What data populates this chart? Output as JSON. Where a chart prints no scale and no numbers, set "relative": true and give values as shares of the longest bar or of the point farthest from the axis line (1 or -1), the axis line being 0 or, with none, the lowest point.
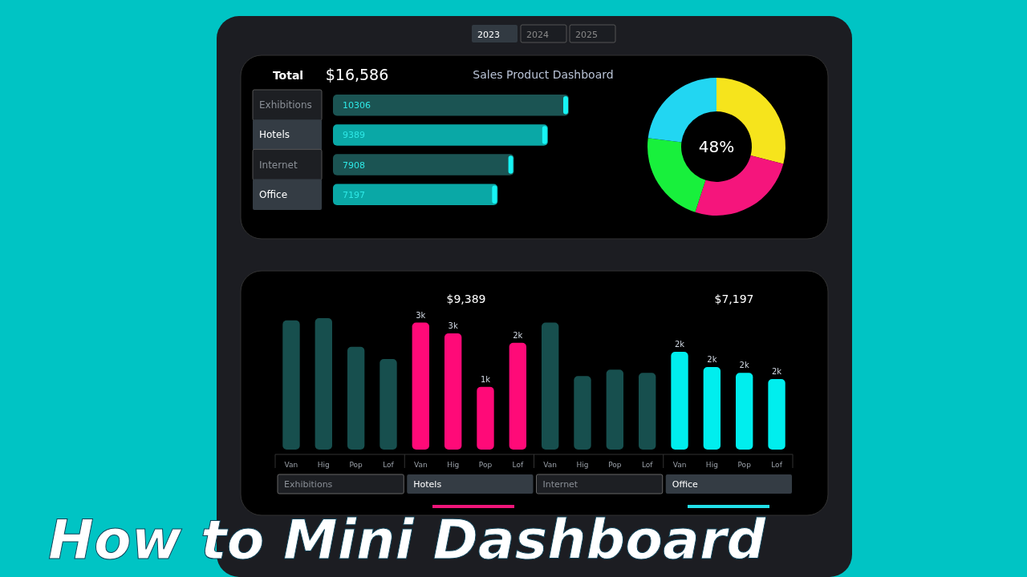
{
  "chart_data": [
    {
      "type": "bar",
      "orientation": "horizontal",
      "title": "Sales Product Dashboard",
      "categories": [
        "Exhibitions",
        "Hotels",
        "Internet",
        "Office"
      ],
      "values": [
        10306,
        9389,
        7908,
        7197
      ],
      "colors": [
        "#1b5453",
        "#0aa8a6",
        "#1b5453",
        "#0aa8a6"
      ],
      "data_labels": true,
      "annotations": [
        "2023",
        "2024",
        "2025",
        "Total",
        "$16,586",
        "How to Mini Dashboard"
      ]
    },
    {
      "type": "donut",
      "relative": true,
      "categories": [
        null,
        null,
        null,
        null
      ],
      "values": [
        29,
        26,
        22,
        23
      ],
      "colors": [
        "#f6e41c",
        "#f5157c",
        "#18f03c",
        "#22d6f2"
      ],
      "annotations": [
        "48%"
      ]
    },
    {
      "type": "bar",
      "categories": [
        "Van",
        "Hig",
        "Pop",
        "Lof",
        "Van",
        "Hig",
        "Pop",
        "Lof",
        "Van",
        "Hig",
        "Pop",
        "Lof",
        "Van",
        "Hig",
        "Pop",
        "Lof"
      ],
      "values": [
        2880,
        2930,
        2290,
        2020,
        2830,
        2590,
        1400,
        2380,
        2830,
        1640,
        1780,
        1710,
        2180,
        1840,
        1710,
        1570
      ],
      "colors": [
        "#174f4e",
        "#174f4e",
        "#174f4e",
        "#174f4e",
        "#ff0a78",
        "#ff0a78",
        "#ff0a78",
        "#ff0a78",
        "#174f4e",
        "#174f4e",
        "#174f4e",
        "#174f4e",
        "#00eeee",
        "#00eeee",
        "#00eeee",
        "#00eeee"
      ],
      "value_labels": [
        null,
        null,
        null,
        null,
        "3k",
        "3k",
        "1k",
        "2k",
        null,
        null,
        null,
        null,
        "2k",
        "2k",
        "2k",
        "2k"
      ],
      "annotations": [
        "$9,389",
        "$7,197",
        "Exhibitions",
        "Hotels",
        "Internet",
        "Office"
      ]
    }
  ]
}
